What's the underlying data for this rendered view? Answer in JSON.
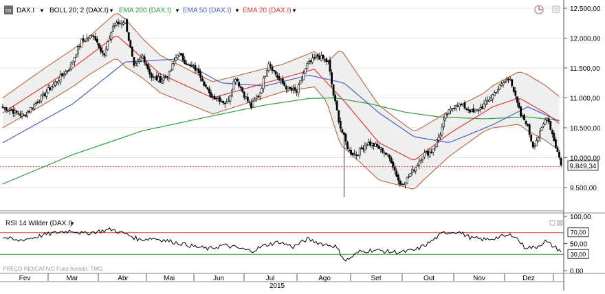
{
  "header": {
    "symbol": "DAX.I",
    "indicators": [
      {
        "label": "BOLL 20; 2 (DAX.I)",
        "color": "#000000"
      },
      {
        "label": "EMA 200 (DAX.I)",
        "color": "#2e9e3e"
      },
      {
        "label": "EMA 50 (DAX.I)",
        "color": "#4a5fc1"
      },
      {
        "label": "EMA 20 (DAX.I)",
        "color": "#e03a3a"
      }
    ]
  },
  "colors": {
    "up_candle": "#ffffff",
    "down_candle": "#000000",
    "bollinger": "#b5663a",
    "bollinger_fill": "#efefef",
    "ema200": "#2e9e3e",
    "ema50": "#4a5fc1",
    "ema20": "#e03a3a",
    "rsi": "#000000",
    "rsi_upper": "#e03a3a",
    "rsi_lower": "#2e9e3e",
    "last_price_line": "#e03a3a"
  },
  "rsi_header": {
    "label": "RSI 14 Wilder (DAX.I)"
  },
  "footer": {
    "note": "PREÇO INDICATIVO   Fuso horário: TMG"
  },
  "last_price": {
    "label": "9.849,34",
    "value": 9849.34
  },
  "chart_data": [
    {
      "type": "candlestick",
      "title": "DAX.I",
      "x_months": [
        "Fev",
        "Mar",
        "Abr",
        "Mai",
        "Jun",
        "Jul",
        "Ago",
        "Set",
        "Out",
        "Nov",
        "Dez"
      ],
      "year": "2015",
      "y_ticks": [
        "12.500,00",
        "12.000,00",
        "11.500,00",
        "11.000,00",
        "10.500,00",
        "10.000,00",
        "9.500,00"
      ],
      "y_tick_values": [
        12500,
        12000,
        11500,
        11000,
        10500,
        10000,
        9500
      ],
      "ylim": [
        9000,
        12600
      ],
      "close_path": [
        [
          0,
          10850
        ],
        [
          12,
          10700
        ],
        [
          25,
          11100
        ],
        [
          38,
          11500
        ],
        [
          45,
          11950
        ],
        [
          52,
          12050
        ],
        [
          58,
          11700
        ],
        [
          63,
          12200
        ],
        [
          70,
          12300
        ],
        [
          75,
          11500
        ],
        [
          80,
          11700
        ],
        [
          85,
          11350
        ],
        [
          90,
          11300
        ],
        [
          95,
          11400
        ],
        [
          100,
          11750
        ],
        [
          106,
          11550
        ],
        [
          112,
          11450
        ],
        [
          118,
          11050
        ],
        [
          123,
          11000
        ],
        [
          128,
          10900
        ],
        [
          133,
          11350
        ],
        [
          138,
          11050
        ],
        [
          142,
          10850
        ],
        [
          147,
          11100
        ],
        [
          152,
          11600
        ],
        [
          158,
          11300
        ],
        [
          163,
          11150
        ],
        [
          168,
          11100
        ],
        [
          174,
          11550
        ],
        [
          180,
          11700
        ],
        [
          186,
          11600
        ],
        [
          189,
          11050
        ],
        [
          193,
          10500
        ],
        [
          198,
          10100
        ],
        [
          202,
          10050
        ],
        [
          208,
          10250
        ],
        [
          213,
          10200
        ],
        [
          218,
          10100
        ],
        [
          222,
          9950
        ],
        [
          227,
          9550
        ],
        [
          231,
          9650
        ],
        [
          236,
          9850
        ],
        [
          240,
          10050
        ],
        [
          245,
          10100
        ],
        [
          250,
          10400
        ],
        [
          253,
          10700
        ],
        [
          259,
          10900
        ],
        [
          264,
          10850
        ],
        [
          269,
          10750
        ],
        [
          274,
          10850
        ],
        [
          280,
          11050
        ],
        [
          286,
          11250
        ],
        [
          290,
          11350
        ],
        [
          293,
          11000
        ],
        [
          296,
          10700
        ],
        [
          299,
          10600
        ],
        [
          303,
          10200
        ],
        [
          307,
          10400
        ],
        [
          311,
          10700
        ],
        [
          315,
          10300
        ],
        [
          319,
          9900
        ]
      ],
      "volatility": [
        [
          0,
          250
        ],
        [
          25,
          300
        ],
        [
          50,
          320
        ],
        [
          70,
          400
        ],
        [
          80,
          330
        ],
        [
          110,
          280
        ],
        [
          130,
          260
        ],
        [
          160,
          230
        ],
        [
          185,
          320
        ],
        [
          193,
          800
        ],
        [
          205,
          700
        ],
        [
          225,
          550
        ],
        [
          240,
          450
        ],
        [
          255,
          380
        ],
        [
          275,
          320
        ],
        [
          288,
          400
        ],
        [
          300,
          470
        ],
        [
          319,
          450
        ]
      ],
      "spike_low": {
        "day": 195,
        "value": 9340
      },
      "series": [
        {
          "name": "EMA 200 (DAX.I)",
          "values": [
            [
              0,
              9560
            ],
            [
              40,
              10050
            ],
            [
              80,
              10450
            ],
            [
              120,
              10700
            ],
            [
              150,
              10880
            ],
            [
              175,
              10990
            ],
            [
              190,
              11000
            ],
            [
              210,
              10900
            ],
            [
              230,
              10760
            ],
            [
              250,
              10680
            ],
            [
              275,
              10650
            ],
            [
              300,
              10680
            ],
            [
              319,
              10620
            ]
          ]
        },
        {
          "name": "EMA 50 (DAX.I)",
          "values": [
            [
              0,
              10250
            ],
            [
              40,
              10900
            ],
            [
              70,
              11600
            ],
            [
              100,
              11650
            ],
            [
              125,
              11250
            ],
            [
              150,
              11200
            ],
            [
              175,
              11380
            ],
            [
              195,
              11250
            ],
            [
              215,
              10750
            ],
            [
              235,
              10350
            ],
            [
              255,
              10250
            ],
            [
              280,
              10550
            ],
            [
              300,
              10850
            ],
            [
              319,
              10600
            ]
          ]
        },
        {
          "name": "EMA 20 (DAX.I)",
          "values": [
            [
              0,
              10750
            ],
            [
              40,
              11500
            ],
            [
              65,
              12050
            ],
            [
              90,
              11400
            ],
            [
              120,
              11000
            ],
            [
              150,
              11250
            ],
            [
              178,
              11480
            ],
            [
              195,
              10950
            ],
            [
              215,
              10250
            ],
            [
              235,
              9950
            ],
            [
              255,
              10400
            ],
            [
              280,
              10850
            ],
            [
              295,
              11000
            ],
            [
              310,
              10750
            ],
            [
              319,
              10550
            ]
          ]
        }
      ]
    },
    {
      "type": "line",
      "title": "RSI 14 Wilder (DAX.I)",
      "y_ticks": [
        "100,00",
        "70,00",
        "50,00",
        "30,00",
        "0,00"
      ],
      "y_tick_values": [
        100,
        70,
        50,
        30,
        0
      ],
      "ylim": [
        0,
        100
      ],
      "levels": [
        70,
        30
      ],
      "level_labels": [
        "70,00",
        "30,00"
      ],
      "series": [
        {
          "name": "RSI 14 Wilder (DAX.I)",
          "values": [
            [
              0,
              62
            ],
            [
              8,
              55
            ],
            [
              16,
              60
            ],
            [
              24,
              66
            ],
            [
              32,
              71
            ],
            [
              40,
              74
            ],
            [
              46,
              68
            ],
            [
              54,
              72
            ],
            [
              62,
              76
            ],
            [
              70,
              68
            ],
            [
              78,
              57
            ],
            [
              86,
              60
            ],
            [
              94,
              55
            ],
            [
              102,
              50
            ],
            [
              110,
              44
            ],
            [
              118,
              40
            ],
            [
              126,
              47
            ],
            [
              134,
              42
            ],
            [
              142,
              36
            ],
            [
              150,
              47
            ],
            [
              158,
              53
            ],
            [
              166,
              44
            ],
            [
              174,
              58
            ],
            [
              182,
              50
            ],
            [
              190,
              45
            ],
            [
              196,
              18
            ],
            [
              204,
              35
            ],
            [
              212,
              38
            ],
            [
              220,
              35
            ],
            [
              228,
              34
            ],
            [
              236,
              38
            ],
            [
              244,
              52
            ],
            [
              252,
              70
            ],
            [
              260,
              72
            ],
            [
              268,
              60
            ],
            [
              276,
              57
            ],
            [
              284,
              62
            ],
            [
              292,
              66
            ],
            [
              298,
              44
            ],
            [
              304,
              42
            ],
            [
              310,
              54
            ],
            [
              319,
              36
            ]
          ]
        }
      ]
    }
  ]
}
